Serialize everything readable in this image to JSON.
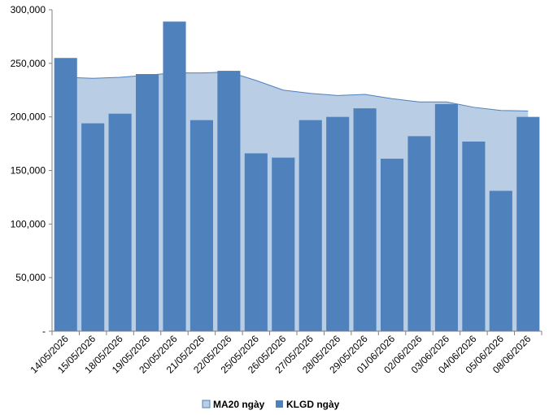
{
  "chart_data": {
    "type": "bar",
    "categories": [
      "14/05/2026",
      "15/05/2026",
      "18/05/2026",
      "19/05/2026",
      "20/05/2026",
      "21/05/2026",
      "22/05/2026",
      "25/05/2026",
      "26/05/2026",
      "27/05/2026",
      "28/05/2026",
      "29/05/2026",
      "01/06/2026",
      "02/06/2026",
      "03/06/2026",
      "04/06/2026",
      "05/06/2026",
      "08/06/2026"
    ],
    "series": [
      {
        "name": "MA20 ngày",
        "type": "area",
        "color": "#b9cde5",
        "line_color": "#4f81bd",
        "values": [
          237000,
          236000,
          237000,
          239000,
          241000,
          241000,
          242000,
          234000,
          225000,
          222000,
          220000,
          221000,
          217000,
          214000,
          214000,
          209000,
          206000,
          205500
        ]
      },
      {
        "name": "KLGD ngày",
        "type": "bar",
        "color": "#4f81bd",
        "values": [
          255000,
          194000,
          203000,
          240000,
          289000,
          197000,
          243000,
          166000,
          162000,
          197000,
          200000,
          208000,
          161000,
          182000,
          212000,
          177000,
          131000,
          200000
        ]
      }
    ],
    "yticks": [
      "-",
      "50,000",
      "100,000",
      "150,000",
      "200,000",
      "250,000",
      "300,000"
    ],
    "ylim": [
      0,
      300000
    ],
    "legend_position": "bottom",
    "grid": false
  }
}
